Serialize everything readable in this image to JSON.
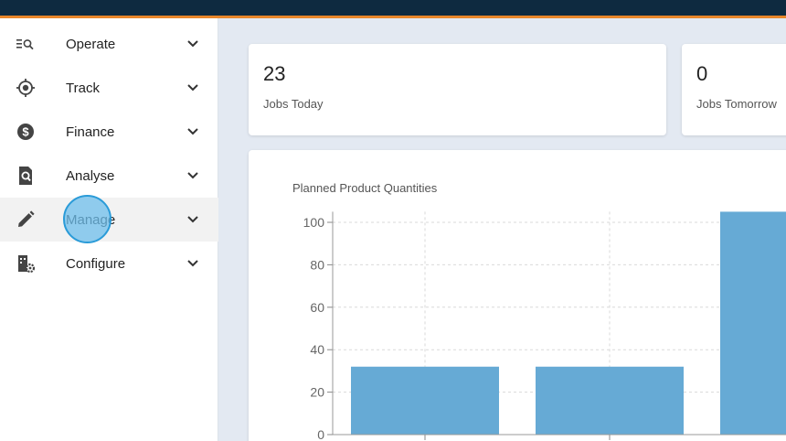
{
  "nav": {
    "items": [
      {
        "label": "Operate",
        "icon": "operate-search-list-icon"
      },
      {
        "label": "Track",
        "icon": "crosshair-icon"
      },
      {
        "label": "Finance",
        "icon": "dollar-circle-icon"
      },
      {
        "label": "Analyse",
        "icon": "document-search-icon"
      },
      {
        "label": "Manage",
        "icon": "pencil-icon"
      },
      {
        "label": "Configure",
        "icon": "building-gear-icon"
      }
    ],
    "active": "Manage"
  },
  "kpis": [
    {
      "value": "23",
      "label": "Jobs Today"
    },
    {
      "value": "0",
      "label": "Jobs Tomorrow"
    }
  ],
  "colors": {
    "topbar": "#0e2a40",
    "accent": "#e8862a",
    "bar": "#66aad5"
  },
  "chart_data": {
    "type": "bar",
    "title": "Planned Product Quantities",
    "values": [
      32,
      32,
      105
    ],
    "yticks": [
      0,
      20,
      40,
      60,
      80,
      100
    ],
    "ylim": [
      0,
      105
    ],
    "grid": true
  }
}
